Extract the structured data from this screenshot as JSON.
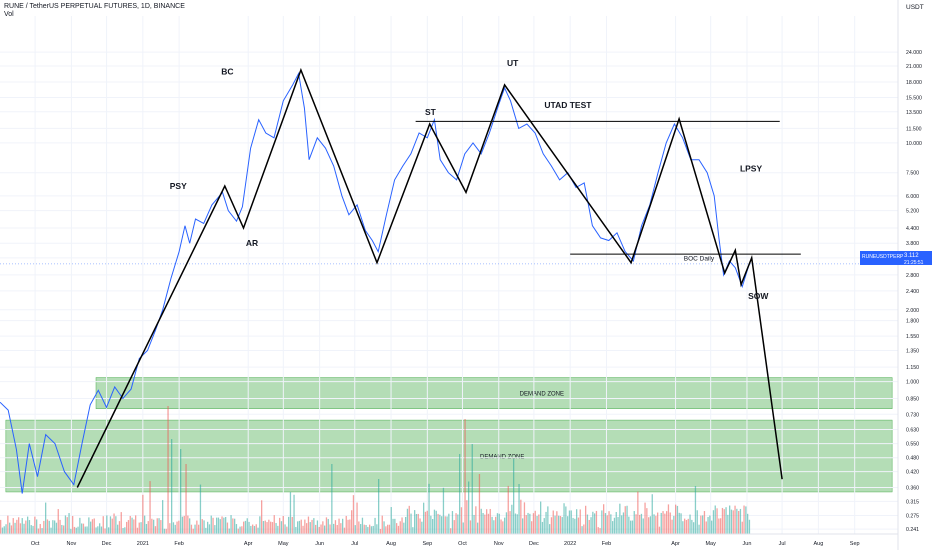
{
  "header": {
    "title": "RUNE / TetherUS PERPETUAL FUTURES, 1D, BINANCE",
    "vol_label": "Vol",
    "currency": "USDT"
  },
  "price_badge": {
    "symbol": "RUNEUSDTPERP",
    "price": "3.112",
    "countdown": "21:25:51"
  },
  "chart_data": {
    "type": "line",
    "y_scale": "log",
    "ylim": [
      0.23,
      34
    ],
    "y_ticks": [
      24.0,
      21.0,
      18.0,
      15.5,
      13.5,
      11.5,
      10.0,
      7.5,
      6.0,
      5.2,
      4.4,
      3.8,
      3.3,
      2.8,
      2.4,
      2.0,
      1.8,
      1.55,
      1.35,
      1.15,
      1.0,
      0.85,
      0.73,
      0.63,
      0.55,
      0.48,
      0.42,
      0.36,
      0.315,
      0.275,
      0.241
    ],
    "y_tick_labels": [
      "24.000",
      "21.000",
      "18.000",
      "15.500",
      "13.500",
      "11.500",
      "10.000",
      "7.500",
      "6.000",
      "5.200",
      "4.400",
      "3.800",
      "3.300",
      "2.800",
      "2.400",
      "2.000",
      "1.800",
      "1.550",
      "1.350",
      "1.150",
      "1.000",
      "0.850",
      "0.730",
      "0.630",
      "0.550",
      "0.480",
      "0.420",
      "0.360",
      "0.315",
      "0.275",
      "0.241"
    ],
    "xlim": [
      "2020-09-01",
      "2022-10-08"
    ],
    "x_ticks": [
      {
        "date": "2020-10-01",
        "label": "Oct"
      },
      {
        "date": "2020-11-01",
        "label": "Nov"
      },
      {
        "date": "2020-12-01",
        "label": "Dec"
      },
      {
        "date": "2021-01-01",
        "label": "2021"
      },
      {
        "date": "2021-02-01",
        "label": "Feb"
      },
      {
        "date": "2021-04-01",
        "label": "Apr"
      },
      {
        "date": "2021-05-01",
        "label": "May"
      },
      {
        "date": "2021-06-01",
        "label": "Jun"
      },
      {
        "date": "2021-07-01",
        "label": "Jul"
      },
      {
        "date": "2021-08-01",
        "label": "Aug"
      },
      {
        "date": "2021-09-01",
        "label": "Sep"
      },
      {
        "date": "2021-10-01",
        "label": "Oct"
      },
      {
        "date": "2021-11-01",
        "label": "Nov"
      },
      {
        "date": "2021-12-01",
        "label": "Dec"
      },
      {
        "date": "2022-01-01",
        "label": "2022"
      },
      {
        "date": "2022-02-01",
        "label": "Feb"
      },
      {
        "date": "2022-04-01",
        "label": "Apr"
      },
      {
        "date": "2022-05-01",
        "label": "May"
      },
      {
        "date": "2022-06-01",
        "label": "Jun"
      },
      {
        "date": "2022-07-01",
        "label": "Jul"
      },
      {
        "date": "2022-08-01",
        "label": "Aug"
      },
      {
        "date": "2022-09-01",
        "label": "Sep"
      }
    ],
    "price_series": {
      "color": "#2962ff",
      "points": [
        [
          "2020-09-01",
          0.82
        ],
        [
          "2020-09-08",
          0.76
        ],
        [
          "2020-09-15",
          0.52
        ],
        [
          "2020-09-20",
          0.34
        ],
        [
          "2020-09-26",
          0.55
        ],
        [
          "2020-10-03",
          0.4
        ],
        [
          "2020-10-10",
          0.6
        ],
        [
          "2020-10-18",
          0.55
        ],
        [
          "2020-10-26",
          0.42
        ],
        [
          "2020-11-03",
          0.37
        ],
        [
          "2020-11-10",
          0.55
        ],
        [
          "2020-11-17",
          0.8
        ],
        [
          "2020-11-24",
          0.92
        ],
        [
          "2020-12-01",
          0.78
        ],
        [
          "2020-12-08",
          0.95
        ],
        [
          "2020-12-15",
          0.85
        ],
        [
          "2020-12-22",
          0.93
        ],
        [
          "2020-12-29",
          1.25
        ],
        [
          "2021-01-05",
          1.35
        ],
        [
          "2021-01-12",
          1.65
        ],
        [
          "2021-01-18",
          2.0
        ],
        [
          "2021-01-25",
          2.7
        ],
        [
          "2021-02-01",
          3.5
        ],
        [
          "2021-02-06",
          4.5
        ],
        [
          "2021-02-10",
          3.8
        ],
        [
          "2021-02-15",
          4.8
        ],
        [
          "2021-02-22",
          4.6
        ],
        [
          "2021-03-01",
          5.5
        ],
        [
          "2021-03-10",
          6.2
        ],
        [
          "2021-03-15",
          5.2
        ],
        [
          "2021-03-22",
          4.7
        ],
        [
          "2021-03-27",
          5.4
        ],
        [
          "2021-04-03",
          9.5
        ],
        [
          "2021-04-10",
          12.5
        ],
        [
          "2021-04-16",
          11.0
        ],
        [
          "2021-04-23",
          10.5
        ],
        [
          "2021-05-01",
          15.0
        ],
        [
          "2021-05-09",
          17.5
        ],
        [
          "2021-05-14",
          19.5
        ],
        [
          "2021-05-19",
          14.0
        ],
        [
          "2021-05-23",
          8.5
        ],
        [
          "2021-05-30",
          10.5
        ],
        [
          "2021-06-06",
          9.5
        ],
        [
          "2021-06-13",
          8.0
        ],
        [
          "2021-06-20",
          6.0
        ],
        [
          "2021-06-26",
          5.0
        ],
        [
          "2021-07-03",
          5.5
        ],
        [
          "2021-07-10",
          4.3
        ],
        [
          "2021-07-16",
          3.9
        ],
        [
          "2021-07-21",
          3.5
        ],
        [
          "2021-07-28",
          5.0
        ],
        [
          "2021-08-04",
          7.0
        ],
        [
          "2021-08-11",
          8.0
        ],
        [
          "2021-08-18",
          9.0
        ],
        [
          "2021-08-25",
          11.0
        ],
        [
          "2021-09-01",
          10.5
        ],
        [
          "2021-09-07",
          12.5
        ],
        [
          "2021-09-12",
          8.5
        ],
        [
          "2021-09-19",
          7.5
        ],
        [
          "2021-09-26",
          7.0
        ],
        [
          "2021-10-03",
          9.0
        ],
        [
          "2021-10-10",
          10.0
        ],
        [
          "2021-10-17",
          9.0
        ],
        [
          "2021-10-24",
          11.0
        ],
        [
          "2021-11-01",
          14.5
        ],
        [
          "2021-11-06",
          17.0
        ],
        [
          "2021-11-11",
          15.0
        ],
        [
          "2021-11-18",
          11.5
        ],
        [
          "2021-11-25",
          12.0
        ],
        [
          "2021-12-02",
          11.0
        ],
        [
          "2021-12-09",
          9.0
        ],
        [
          "2021-12-16",
          8.0
        ],
        [
          "2021-12-23",
          7.0
        ],
        [
          "2021-12-30",
          7.5
        ],
        [
          "2022-01-06",
          6.5
        ],
        [
          "2022-01-13",
          6.8
        ],
        [
          "2022-01-20",
          4.5
        ],
        [
          "2022-01-27",
          4.0
        ],
        [
          "2022-02-03",
          3.9
        ],
        [
          "2022-02-10",
          4.2
        ],
        [
          "2022-02-17",
          3.5
        ],
        [
          "2022-02-24",
          3.2
        ],
        [
          "2022-03-03",
          4.5
        ],
        [
          "2022-03-10",
          5.5
        ],
        [
          "2022-03-17",
          7.5
        ],
        [
          "2022-03-24",
          10.0
        ],
        [
          "2022-03-31",
          12.0
        ],
        [
          "2022-04-07",
          10.5
        ],
        [
          "2022-04-14",
          8.5
        ],
        [
          "2022-04-21",
          8.5
        ],
        [
          "2022-04-28",
          7.5
        ],
        [
          "2022-05-04",
          6.0
        ],
        [
          "2022-05-08",
          4.0
        ],
        [
          "2022-05-12",
          2.8
        ],
        [
          "2022-05-17",
          3.2
        ],
        [
          "2022-05-22",
          3.0
        ],
        [
          "2022-05-28",
          2.5
        ],
        [
          "2022-06-03",
          3.112
        ]
      ]
    },
    "volume_bars": {
      "color_up": "#26a69a",
      "color_down": "#ef5350",
      "note_label": "Vol"
    },
    "annotations": {
      "wyckoff_path": {
        "color": "#000000",
        "points": [
          [
            "2020-11-06",
            0.36
          ],
          [
            "2021-03-12",
            6.6
          ],
          [
            "2021-03-28",
            4.4
          ],
          [
            "2021-05-16",
            20.2
          ],
          [
            "2021-07-20",
            3.15
          ],
          [
            "2021-09-03",
            12.0
          ],
          [
            "2021-10-04",
            6.2
          ],
          [
            "2021-11-06",
            17.5
          ],
          [
            "2022-02-22",
            3.15
          ],
          [
            "2022-04-04",
            12.6
          ],
          [
            "2022-05-13",
            2.85
          ],
          [
            "2022-05-22",
            3.55
          ],
          [
            "2022-05-27",
            2.55
          ],
          [
            "2022-06-05",
            3.3
          ],
          [
            "2022-07-01",
            0.39
          ]
        ]
      },
      "utad_line": {
        "y": 12.3,
        "x_from": "2021-08-22",
        "x_to": "2022-06-29"
      },
      "boc_line": {
        "y": 3.42,
        "x_from": "2022-01-01",
        "x_to": "2022-07-17"
      },
      "current_price_line": {
        "y": 3.112
      },
      "zones": [
        {
          "label": "DEMAND ZONE",
          "y_from": 0.77,
          "y_to": 1.04,
          "x_from": "2020-11-22",
          "x_to": "2022-10-03"
        },
        {
          "label": "DEMAND ZONE",
          "y_from": 0.345,
          "y_to": 0.69,
          "x_from": "2020-09-06",
          "x_to": "2022-10-03"
        }
      ],
      "labels": [
        {
          "text": "BC",
          "x": "2021-03-09",
          "y": 19.3
        },
        {
          "text": "PSY",
          "x": "2021-01-24",
          "y": 6.4
        },
        {
          "text": "AR",
          "x": "2021-03-30",
          "y": 3.7
        },
        {
          "text": "ST",
          "x": "2021-08-30",
          "y": 13.1
        },
        {
          "text": "UT",
          "x": "2021-11-08",
          "y": 21.0
        },
        {
          "text": "UTAD TEST",
          "x": "2021-12-10",
          "y": 14.0
        },
        {
          "text": "LPSY",
          "x": "2022-05-26",
          "y": 7.6
        },
        {
          "text": "BOC Daily",
          "x": "2022-04-08",
          "y": 3.22
        },
        {
          "text": "SOW",
          "x": "2022-06-02",
          "y": 2.22
        }
      ]
    }
  }
}
